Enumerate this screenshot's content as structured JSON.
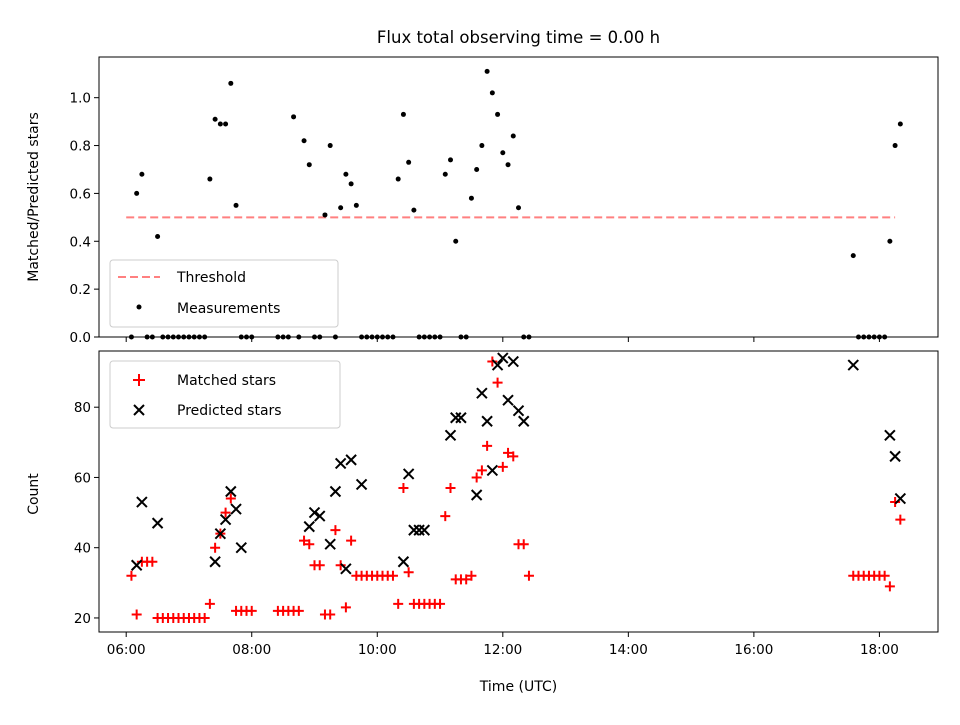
{
  "colors": {
    "threshold": "#ff8080",
    "measurements": "#000000",
    "matched": "#ff0000",
    "predicted": "#000000"
  },
  "chart_data": [
    {
      "type": "scatter",
      "title": "Flux total observing time = 0.00 h",
      "xlabel": "",
      "ylabel": "Matched/Predicted stars",
      "xlim": [
        "05:34",
        "18:56"
      ],
      "ylim": [
        0,
        1.17
      ],
      "yticks": [
        "0.0",
        "0.2",
        "0.4",
        "0.6",
        "0.8",
        "1.0"
      ],
      "grid": false,
      "legend": "lower-left",
      "threshold": {
        "name": "Threshold",
        "value": 0.5,
        "x": [
          "06:00",
          "18:15"
        ]
      },
      "series": [
        {
          "name": "Measurements",
          "x": [
            "06:05",
            "06:10",
            "06:15",
            "06:20",
            "06:25",
            "06:30",
            "06:35",
            "06:40",
            "06:45",
            "06:50",
            "06:55",
            "07:00",
            "07:05",
            "07:10",
            "07:15",
            "07:20",
            "07:25",
            "07:30",
            "07:35",
            "07:40",
            "07:45",
            "07:50",
            "07:55",
            "08:00",
            "08:25",
            "08:30",
            "08:35",
            "08:40",
            "08:45",
            "08:50",
            "08:55",
            "09:00",
            "09:05",
            "09:10",
            "09:15",
            "09:20",
            "09:25",
            "09:30",
            "09:35",
            "09:40",
            "09:45",
            "09:50",
            "09:55",
            "10:00",
            "10:05",
            "10:10",
            "10:15",
            "10:20",
            "10:25",
            "10:30",
            "10:35",
            "10:40",
            "10:45",
            "10:50",
            "10:55",
            "11:00",
            "11:05",
            "11:10",
            "11:15",
            "11:20",
            "11:25",
            "11:30",
            "11:35",
            "11:40",
            "11:45",
            "11:50",
            "11:55",
            "12:00",
            "12:05",
            "12:10",
            "12:15",
            "12:20",
            "12:25",
            "17:35",
            "17:40",
            "17:45",
            "17:50",
            "17:55",
            "18:00",
            "18:05",
            "18:10",
            "18:15",
            "18:20"
          ],
          "y": [
            0,
            0.6,
            0.68,
            0,
            0,
            0.42,
            0,
            0,
            0,
            0,
            0,
            0,
            0,
            0,
            0,
            0.66,
            0.91,
            0.89,
            0.89,
            1.06,
            0.55,
            0,
            0,
            0,
            0,
            0,
            0,
            0.92,
            0,
            0.82,
            0.72,
            0,
            0,
            0.51,
            0.8,
            0,
            0.54,
            0.68,
            0.64,
            0.55,
            0,
            0,
            0,
            0,
            0,
            0,
            0,
            0.66,
            0.93,
            0.73,
            0.53,
            0,
            0,
            0,
            0,
            0,
            0.68,
            0.74,
            0.4,
            0,
            0,
            0.58,
            0.7,
            0.8,
            1.11,
            1.02,
            0.93,
            0.77,
            0.72,
            0.84,
            0.54,
            0,
            0,
            0.34,
            0,
            0,
            0,
            0,
            0,
            0,
            0.4,
            0.8,
            0.89
          ]
        }
      ]
    },
    {
      "type": "scatter",
      "xlabel": "Time (UTC)",
      "ylabel": "Count",
      "xlim": [
        "05:34",
        "18:56"
      ],
      "ylim": [
        16,
        96
      ],
      "xticks": [
        "06:00",
        "08:00",
        "10:00",
        "12:00",
        "14:00",
        "16:00",
        "18:00"
      ],
      "yticks": [
        "20",
        "40",
        "60",
        "80"
      ],
      "grid": false,
      "legend": "top-left",
      "series": [
        {
          "name": "Matched stars",
          "marker": "+",
          "x": [
            "06:05",
            "06:10",
            "06:15",
            "06:20",
            "06:25",
            "06:30",
            "06:35",
            "06:40",
            "06:45",
            "06:50",
            "06:55",
            "07:00",
            "07:05",
            "07:10",
            "07:15",
            "07:20",
            "07:25",
            "07:30",
            "07:35",
            "07:40",
            "07:45",
            "07:50",
            "07:55",
            "08:00",
            "08:25",
            "08:30",
            "08:35",
            "08:40",
            "08:45",
            "08:50",
            "08:55",
            "09:00",
            "09:05",
            "09:10",
            "09:15",
            "09:20",
            "09:25",
            "09:30",
            "09:35",
            "09:40",
            "09:45",
            "09:50",
            "09:55",
            "10:00",
            "10:05",
            "10:10",
            "10:15",
            "10:20",
            "10:25",
            "10:30",
            "10:35",
            "10:40",
            "10:45",
            "10:50",
            "10:55",
            "11:00",
            "11:05",
            "11:10",
            "11:15",
            "11:20",
            "11:25",
            "11:30",
            "11:35",
            "11:40",
            "11:45",
            "11:50",
            "11:55",
            "12:00",
            "12:05",
            "12:10",
            "12:15",
            "12:20",
            "12:25",
            "17:35",
            "17:40",
            "17:45",
            "17:50",
            "17:55",
            "18:00",
            "18:05",
            "18:10",
            "18:15",
            "18:20"
          ],
          "y": [
            32,
            21,
            36,
            36,
            36,
            20,
            20,
            20,
            20,
            20,
            20,
            20,
            20,
            20,
            20,
            24,
            40,
            44,
            50,
            54,
            22,
            22,
            22,
            22,
            22,
            22,
            22,
            22,
            22,
            42,
            41,
            35,
            35,
            21,
            21,
            45,
            35,
            23,
            42,
            32,
            32,
            32,
            32,
            32,
            32,
            32,
            32,
            24,
            57,
            33,
            24,
            24,
            24,
            24,
            24,
            24,
            49,
            57,
            31,
            31,
            31,
            32,
            60,
            62,
            69,
            93,
            87,
            63,
            67,
            66,
            41,
            41,
            32,
            32,
            32,
            32,
            32,
            32,
            32,
            32,
            29,
            53,
            48
          ]
        },
        {
          "name": "Predicted stars",
          "marker": "x",
          "x": [
            "06:10",
            "06:15",
            "06:30",
            "07:25",
            "07:30",
            "07:35",
            "07:40",
            "07:45",
            "07:50",
            "08:55",
            "09:00",
            "09:05",
            "09:15",
            "09:20",
            "09:25",
            "09:30",
            "09:35",
            "09:45",
            "10:25",
            "10:30",
            "10:35",
            "10:40",
            "10:45",
            "11:10",
            "11:15",
            "11:20",
            "11:35",
            "11:40",
            "11:45",
            "11:50",
            "11:55",
            "12:00",
            "12:05",
            "12:10",
            "12:15",
            "12:20",
            "17:35",
            "18:10",
            "18:15",
            "18:20"
          ],
          "y": [
            35,
            53,
            47,
            36,
            44,
            48,
            56,
            51,
            40,
            46,
            50,
            49,
            41,
            56,
            64,
            34,
            65,
            58,
            36,
            61,
            45,
            45,
            45,
            72,
            77,
            77,
            55,
            84,
            76,
            62,
            92,
            94,
            82,
            93,
            79,
            76,
            92,
            72,
            66,
            54
          ]
        }
      ]
    }
  ]
}
